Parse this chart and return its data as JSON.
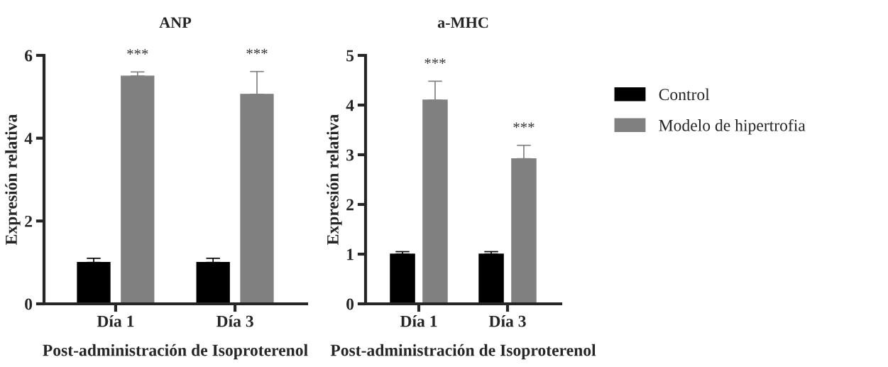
{
  "chart_data": [
    {
      "type": "bar",
      "title": "ANP",
      "xlabel": "Post-administración de Isoproterenol",
      "ylabel": "Expresión relativa",
      "categories": [
        "Día 1",
        "Día 3"
      ],
      "series": [
        {
          "color": "#000000",
          "values": [
            1.0,
            1.0
          ],
          "errors": [
            0.1,
            0.1
          ]
        },
        {
          "color": "#808080",
          "values": [
            5.5,
            5.06
          ],
          "errors": [
            0.1,
            0.55
          ]
        }
      ],
      "ylim": [
        0,
        6
      ],
      "yticks": [
        0,
        2,
        4,
        6
      ],
      "grid": false,
      "legend": false,
      "annotations": [
        "***",
        "***"
      ]
    },
    {
      "type": "bar",
      "title": "a-MHC",
      "xlabel": "Post-administración de Isoproterenol",
      "ylabel": "Expresión relativa",
      "categories": [
        "Día 1",
        "Día 3"
      ],
      "series": [
        {
          "name": "Control",
          "color": "#000000",
          "values": [
            1.0,
            1.0
          ],
          "errors": [
            0.05,
            0.05
          ]
        },
        {
          "name": "Modelo de hipertrofia",
          "color": "#808080",
          "values": [
            4.1,
            2.92
          ],
          "errors": [
            0.38,
            0.27
          ]
        }
      ],
      "ylim": [
        0,
        5
      ],
      "yticks": [
        0,
        1,
        2,
        3,
        4,
        5
      ],
      "grid": false,
      "legend": "right",
      "annotations": [
        "***",
        "***"
      ]
    }
  ]
}
